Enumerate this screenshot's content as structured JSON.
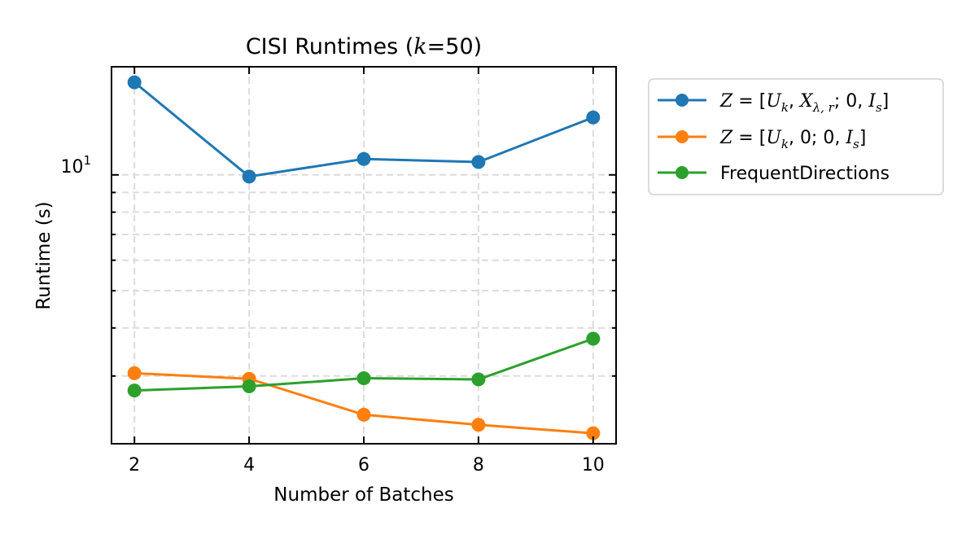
{
  "chart_data": {
    "type": "line",
    "title": "CISI Runtimes (k=50)",
    "title_parts": {
      "before": "CISI Runtimes (",
      "k": "k",
      "after": "=50)"
    },
    "xlabel": "Number of Batches",
    "ylabel": "Runtime (s)",
    "x": [
      2,
      4,
      6,
      8,
      10
    ],
    "x_ticks": [
      "2",
      "4",
      "6",
      "8",
      "10"
    ],
    "xlim": [
      1.6,
      10.4
    ],
    "y_scale": "log",
    "ylim": [
      2.0,
      19.1
    ],
    "y_tick_label": {
      "base": "10",
      "exp": "1"
    },
    "grid": true,
    "legend_position": "outside-right-top",
    "series": [
      {
        "name": "Z = [U_k, X_{λ,r}; 0, I_s]",
        "color": "#1f77b4",
        "values": [
          17.4,
          9.9,
          11.0,
          10.8,
          14.1
        ]
      },
      {
        "name": "Z = [U_k, 0; 0, I_s]",
        "color": "#ff7f0e",
        "values": [
          3.05,
          2.95,
          2.38,
          2.24,
          2.13
        ]
      },
      {
        "name": "FrequentDirections",
        "color": "#2ca02c",
        "values": [
          2.75,
          2.82,
          2.96,
          2.94,
          3.75
        ]
      }
    ]
  }
}
